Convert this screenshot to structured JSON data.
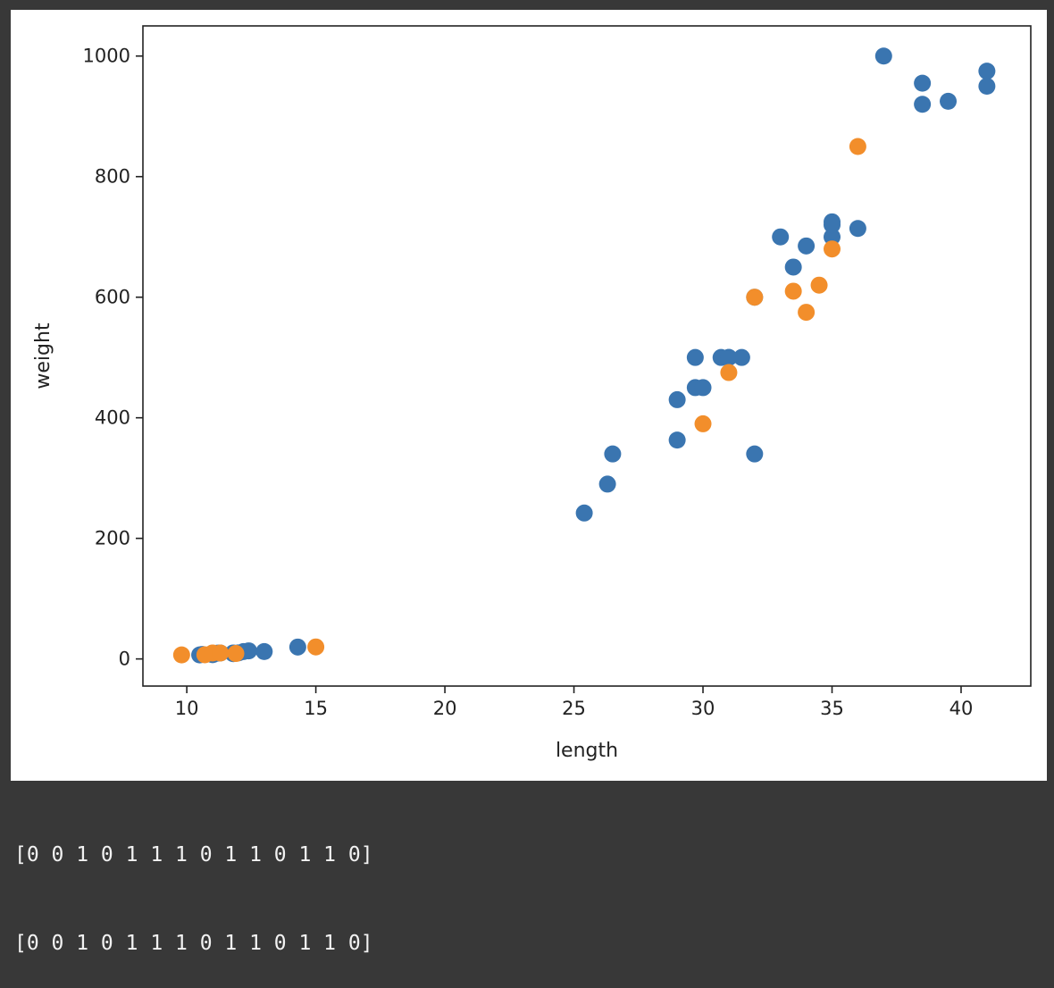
{
  "chart_data": {
    "type": "scatter",
    "title": "",
    "xlabel": "length",
    "ylabel": "weight",
    "xlim": [
      8.3,
      42.7
    ],
    "ylim": [
      -45,
      1050
    ],
    "xticks": [
      10,
      15,
      20,
      25,
      30,
      35,
      40
    ],
    "yticks": [
      0,
      200,
      400,
      600,
      800,
      1000
    ],
    "grid": false,
    "series": [
      {
        "color": "#3a75b0",
        "x": [
          10.5,
          10.6,
          11.0,
          11.2,
          11.3,
          11.8,
          11.8,
          12.0,
          12.2,
          12.4,
          13.0,
          14.3,
          25.4,
          26.3,
          26.5,
          29.0,
          29.0,
          29.7,
          29.7,
          30.0,
          30.7,
          31.0,
          31.0,
          31.5,
          32.0,
          32.0,
          33.0,
          33.5,
          34.0,
          35.0,
          35.0,
          35.0,
          36.0,
          37.0,
          38.5,
          38.5,
          39.5,
          41.0,
          41.0
        ],
        "y": [
          6.7,
          7.5,
          7.0,
          9.7,
          9.8,
          9.9,
          8.7,
          10.0,
          12.2,
          13.4,
          12.2,
          19.7,
          242,
          290,
          340,
          363,
          430,
          450,
          500,
          450,
          500,
          500,
          500,
          500,
          340,
          600,
          700,
          650,
          685,
          700,
          725,
          720,
          714,
          1000,
          920,
          955,
          925,
          975,
          950
        ]
      },
      {
        "color": "#f28e2b",
        "x": [
          9.8,
          10.7,
          11.0,
          11.3,
          11.9,
          15.0,
          30.0,
          31.0,
          32.0,
          33.5,
          34.0,
          34.5,
          35.0,
          36.0
        ],
        "y": [
          6.7,
          6.9,
          9.9,
          9.8,
          9.0,
          19.9,
          390,
          475,
          600,
          610,
          575,
          620,
          680,
          850
        ]
      }
    ]
  },
  "output": {
    "lines": [
      "[0 0 1 0 1 1 1 0 1 1 0 1 1 0]",
      "[0 0 1 0 1 1 1 0 1 1 0 1 1 0]"
    ]
  }
}
